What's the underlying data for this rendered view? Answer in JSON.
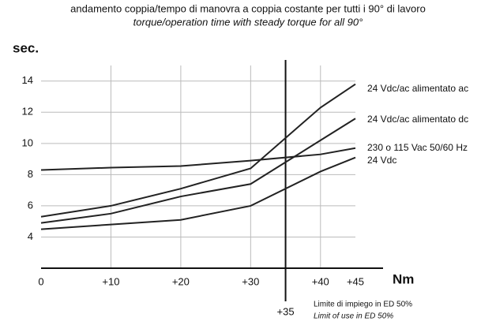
{
  "chart_data": {
    "type": "line",
    "title": "andamento coppia/tempo di manovra a coppia costante per tutti i 90° di lavoro",
    "subtitle": "torque/operation time with steady torque for all 90°",
    "y_label": "sec.",
    "x_label": "Nm",
    "x": [
      0,
      10,
      20,
      30,
      40,
      45
    ],
    "series": [
      {
        "name": "24 Vdc/ac alimentato ac",
        "color": "#222222",
        "values": [
          5.3,
          6.0,
          7.1,
          8.4,
          12.3,
          13.8
        ]
      },
      {
        "name": "24 Vdc/ac alimentato dc",
        "color": "#222222",
        "values": [
          4.9,
          5.5,
          6.6,
          7.4,
          10.2,
          11.6
        ]
      },
      {
        "name": "230 o 115 Vac 50/60 Hz",
        "color": "#222222",
        "values": [
          8.3,
          8.45,
          8.55,
          8.9,
          9.3,
          9.7
        ]
      },
      {
        "name": "24 Vdc",
        "color": "#222222",
        "values": [
          4.5,
          4.8,
          5.1,
          6.0,
          8.2,
          9.1
        ]
      }
    ],
    "xlim": [
      0,
      45
    ],
    "ylim": [
      2,
      15
    ],
    "xticks": [
      0,
      {
        "value": 10,
        "label": "+10"
      },
      {
        "value": 20,
        "label": "+20"
      },
      {
        "value": 30,
        "label": "+30"
      },
      {
        "value": 40,
        "label": "+40"
      },
      {
        "value": 45,
        "label": "+45"
      }
    ],
    "yticks": [
      4,
      6,
      8,
      10,
      12,
      14
    ],
    "grid": true,
    "limit": {
      "value": 35,
      "label": "+35",
      "note": "Limite di impiego in ED 50%",
      "note_en": "Limit of use in ED 50%"
    }
  }
}
